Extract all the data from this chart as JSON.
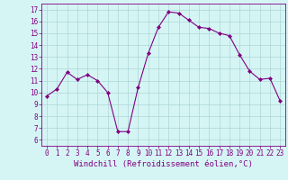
{
  "x": [
    0,
    1,
    2,
    3,
    4,
    5,
    6,
    7,
    8,
    9,
    10,
    11,
    12,
    13,
    14,
    15,
    16,
    17,
    18,
    19,
    20,
    21,
    22,
    23
  ],
  "y": [
    9.7,
    10.3,
    11.7,
    11.1,
    11.5,
    11.0,
    10.0,
    6.7,
    6.7,
    10.4,
    13.3,
    15.5,
    16.8,
    16.7,
    16.1,
    15.5,
    15.4,
    15.0,
    14.8,
    13.2,
    11.8,
    11.1,
    11.2,
    9.3
  ],
  "line_color": "#800080",
  "marker": "D",
  "markersize": 2.0,
  "linewidth": 0.8,
  "xlabel": "Windchill (Refroidissement éolien,°C)",
  "xlabel_fontsize": 6.5,
  "yticks": [
    6,
    7,
    8,
    9,
    10,
    11,
    12,
    13,
    14,
    15,
    16,
    17
  ],
  "xticks": [
    0,
    1,
    2,
    3,
    4,
    5,
    6,
    7,
    8,
    9,
    10,
    11,
    12,
    13,
    14,
    15,
    16,
    17,
    18,
    19,
    20,
    21,
    22,
    23
  ],
  "ylim": [
    5.5,
    17.5
  ],
  "xlim": [
    -0.5,
    23.5
  ],
  "bg_color": "#d5f5f5",
  "grid_color": "#aed4d4",
  "tick_color": "#800080",
  "tick_fontsize": 5.5,
  "spine_color": "#800080"
}
